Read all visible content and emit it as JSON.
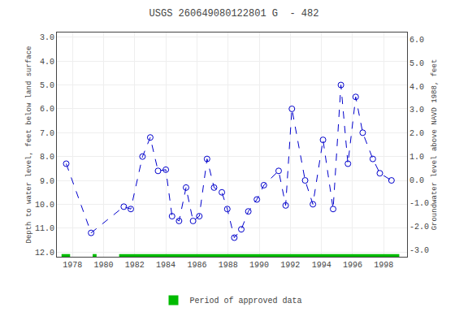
{
  "chart_data": {
    "type": "line",
    "title": "USGS 260649080122801 G  - 482",
    "ylabel": "Depth to water level, feet below land surface",
    "y2label": "Groundwater level above NAVD 1988, feet",
    "x": [
      1977.6,
      1979.2,
      1981.3,
      1981.75,
      1982.5,
      1983.0,
      1983.5,
      1984.0,
      1984.4,
      1984.85,
      1985.3,
      1985.75,
      1986.15,
      1986.65,
      1987.1,
      1987.6,
      1987.95,
      1988.4,
      1988.85,
      1989.3,
      1989.85,
      1990.3,
      1991.25,
      1991.7,
      1992.1,
      1992.95,
      1993.45,
      1994.1,
      1994.75,
      1995.25,
      1995.7,
      1996.2,
      1996.65,
      1997.3,
      1997.75,
      1998.5
    ],
    "values": [
      8.3,
      11.2,
      10.1,
      10.2,
      8.0,
      7.2,
      8.6,
      8.55,
      10.5,
      10.7,
      9.3,
      10.7,
      10.5,
      8.1,
      9.3,
      9.5,
      10.2,
      11.4,
      11.05,
      10.3,
      9.8,
      9.2,
      8.6,
      10.05,
      6.0,
      9.0,
      10.0,
      7.3,
      10.2,
      5.0,
      8.3,
      5.5,
      7.0,
      8.1,
      8.7,
      9.0
    ],
    "color": "#0000CC",
    "marker": "circle-open",
    "line_style": "dash",
    "xlim": [
      1977.0,
      1999.5
    ],
    "xticks": [
      1978,
      1980,
      1982,
      1984,
      1986,
      1988,
      1990,
      1992,
      1994,
      1996,
      1998
    ],
    "ylim": [
      12.2,
      2.8
    ],
    "yticks": [
      {
        "value": 3.0,
        "label": "3.0"
      },
      {
        "value": 4.0,
        "label": "4.0"
      },
      {
        "value": 5.0,
        "label": "5.0"
      },
      {
        "value": 6.0,
        "label": "6.0"
      },
      {
        "value": 7.0,
        "label": "7.0"
      },
      {
        "value": 8.0,
        "label": "8.0"
      },
      {
        "value": 9.0,
        "label": "9.0"
      },
      {
        "value": 10.0,
        "label": "10.0"
      },
      {
        "value": 11.0,
        "label": "11.0"
      },
      {
        "value": 12.0,
        "label": "12.0"
      }
    ],
    "y2lim": [
      -3.3,
      6.3
    ],
    "y2ticks": [
      {
        "value": -3.0,
        "label": "-3.0"
      },
      {
        "value": -2.0,
        "label": "-2.0"
      },
      {
        "value": -1.0,
        "label": "-1.0"
      },
      {
        "value": 0.0,
        "label": "0.0"
      },
      {
        "value": 1.0,
        "label": "1.0"
      },
      {
        "value": 2.0,
        "label": "2.0"
      },
      {
        "value": 3.0,
        "label": "3.0"
      },
      {
        "value": 4.0,
        "label": "4.0"
      },
      {
        "value": 5.0,
        "label": "5.0"
      },
      {
        "value": 6.0,
        "label": "6.0"
      }
    ],
    "grid": true,
    "legend": "bottom",
    "approved_periods": {
      "name": "Period of approved data",
      "color": "#00BB00",
      "ranges": [
        [
          1977.3,
          1977.85
        ],
        [
          1979.3,
          1979.55
        ],
        [
          1981.0,
          1999.0
        ]
      ]
    }
  }
}
